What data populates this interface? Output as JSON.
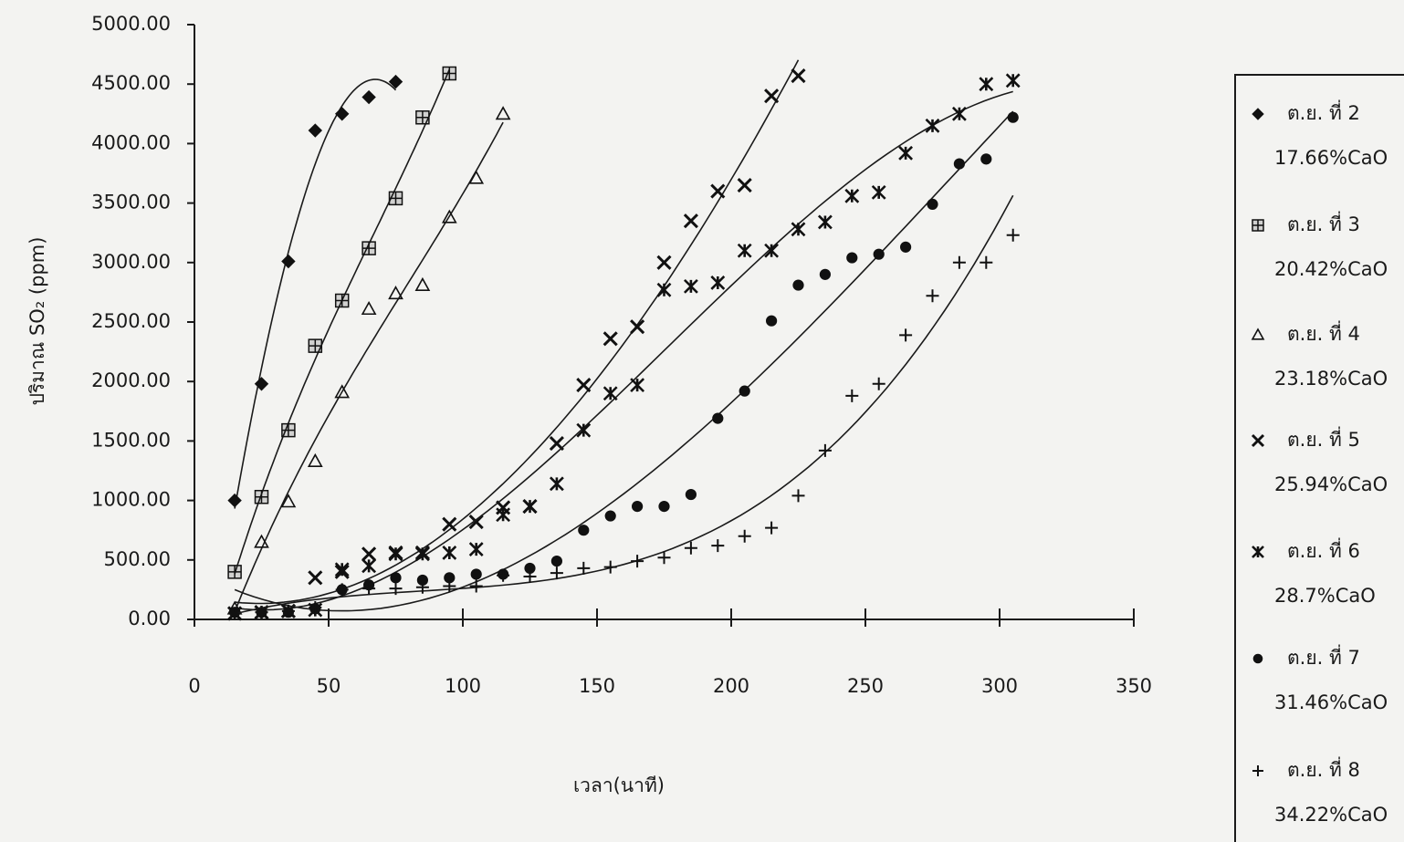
{
  "chart_data": {
    "type": "scatter",
    "x_label": "เวลา(นาที)",
    "y_label": "ปริมาณ SO₂ (ppm)",
    "xlim": [
      0,
      350
    ],
    "xticks": [
      0,
      50,
      100,
      150,
      200,
      250,
      300,
      350
    ],
    "ylim": [
      0,
      5000
    ],
    "yticks": [
      {
        "value": 0,
        "label": "0.00"
      },
      {
        "value": 500,
        "label": "500.00"
      },
      {
        "value": 1000,
        "label": "1000.00"
      },
      {
        "value": 1500,
        "label": "1500.00"
      },
      {
        "value": 2000,
        "label": "2000.00"
      },
      {
        "value": 2500,
        "label": "2500.00"
      },
      {
        "value": 3000,
        "label": "3000.00"
      },
      {
        "value": 3500,
        "label": "3500.00"
      },
      {
        "value": 4000,
        "label": "4000.00"
      },
      {
        "value": 4500,
        "label": "4500.00"
      },
      {
        "value": 5000,
        "label": "5000.00"
      }
    ],
    "trendline": true,
    "series": [
      {
        "name": "ต.ย. ที่ 2",
        "caption": "17.66%CaO",
        "marker": "diamond",
        "color": "#111111",
        "x": [
          15,
          25,
          35,
          45,
          55,
          65,
          75
        ],
        "values": [
          1000,
          1980,
          3010,
          4110,
          4250,
          4390,
          4520
        ]
      },
      {
        "name": "ต.ย. ที่ 3",
        "caption": "20.42%CaO",
        "marker": "square",
        "color": "#111111",
        "x": [
          15,
          25,
          35,
          45,
          55,
          65,
          75,
          85,
          95
        ],
        "values": [
          400,
          1030,
          1590,
          2300,
          2680,
          3120,
          3540,
          4220,
          4590
        ]
      },
      {
        "name": "ต.ย. ที่ 4",
        "caption": "23.18%CaO",
        "marker": "triangle",
        "color": "#111111",
        "x": [
          15,
          25,
          35,
          45,
          55,
          65,
          75,
          85,
          95,
          105,
          115
        ],
        "values": [
          90,
          650,
          990,
          1330,
          1910,
          2610,
          2740,
          2810,
          3380,
          3710,
          4250
        ]
      },
      {
        "name": "ต.ย. ที่ 5",
        "caption": "25.94%CaO",
        "marker": "cross",
        "color": "#111111",
        "x": [
          15,
          25,
          35,
          45,
          55,
          65,
          75,
          85,
          95,
          105,
          115,
          125,
          135,
          145,
          155,
          165,
          175,
          185,
          195,
          205,
          215,
          225
        ],
        "values": [
          50,
          60,
          70,
          350,
          400,
          550,
          560,
          560,
          800,
          820,
          940,
          950,
          1480,
          1970,
          2360,
          2460,
          3000,
          3350,
          3600,
          3650,
          4400,
          4570
        ]
      },
      {
        "name": "ต.ย. ที่ 6",
        "caption": "28.7%CaO",
        "marker": "asterisk",
        "color": "#111111",
        "x": [
          15,
          25,
          35,
          45,
          55,
          65,
          75,
          85,
          95,
          105,
          115,
          125,
          135,
          145,
          155,
          165,
          175,
          185,
          195,
          205,
          215,
          225,
          235,
          245,
          255,
          265,
          275,
          285,
          295,
          305
        ],
        "values": [
          50,
          60,
          70,
          80,
          420,
          450,
          550,
          550,
          560,
          590,
          880,
          950,
          1140,
          1590,
          1900,
          1970,
          2770,
          2800,
          2830,
          3100,
          3100,
          3280,
          3340,
          3560,
          3590,
          3920,
          4150,
          4250,
          4500,
          4530
        ]
      },
      {
        "name": "ต.ย. ที่ 7",
        "caption": "31.46%CaO",
        "marker": "circle",
        "color": "#111111",
        "x": [
          15,
          25,
          35,
          45,
          55,
          65,
          75,
          85,
          95,
          105,
          115,
          125,
          135,
          145,
          155,
          165,
          175,
          185,
          195,
          205,
          215,
          225,
          235,
          245,
          255,
          265,
          275,
          285,
          295,
          305
        ],
        "values": [
          60,
          60,
          60,
          90,
          250,
          290,
          350,
          330,
          350,
          380,
          380,
          430,
          490,
          750,
          870,
          950,
          950,
          1050,
          1690,
          1920,
          2510,
          2810,
          2900,
          3040,
          3070,
          3130,
          3490,
          3830,
          3870,
          4220
        ]
      },
      {
        "name": "ต.ย. ที่ 8",
        "caption": "34.22%CaO",
        "marker": "plus",
        "color": "#111111",
        "x": [
          15,
          25,
          35,
          45,
          55,
          65,
          75,
          85,
          95,
          105,
          115,
          125,
          135,
          145,
          155,
          165,
          175,
          185,
          195,
          205,
          215,
          225,
          235,
          245,
          255,
          265,
          275,
          285,
          295,
          305
        ],
        "values": [
          50,
          60,
          70,
          100,
          250,
          260,
          260,
          270,
          280,
          280,
          370,
          360,
          390,
          430,
          440,
          490,
          520,
          600,
          620,
          700,
          770,
          1040,
          1420,
          1880,
          1980,
          2390,
          2720,
          3000,
          3000,
          3230
        ]
      }
    ]
  }
}
